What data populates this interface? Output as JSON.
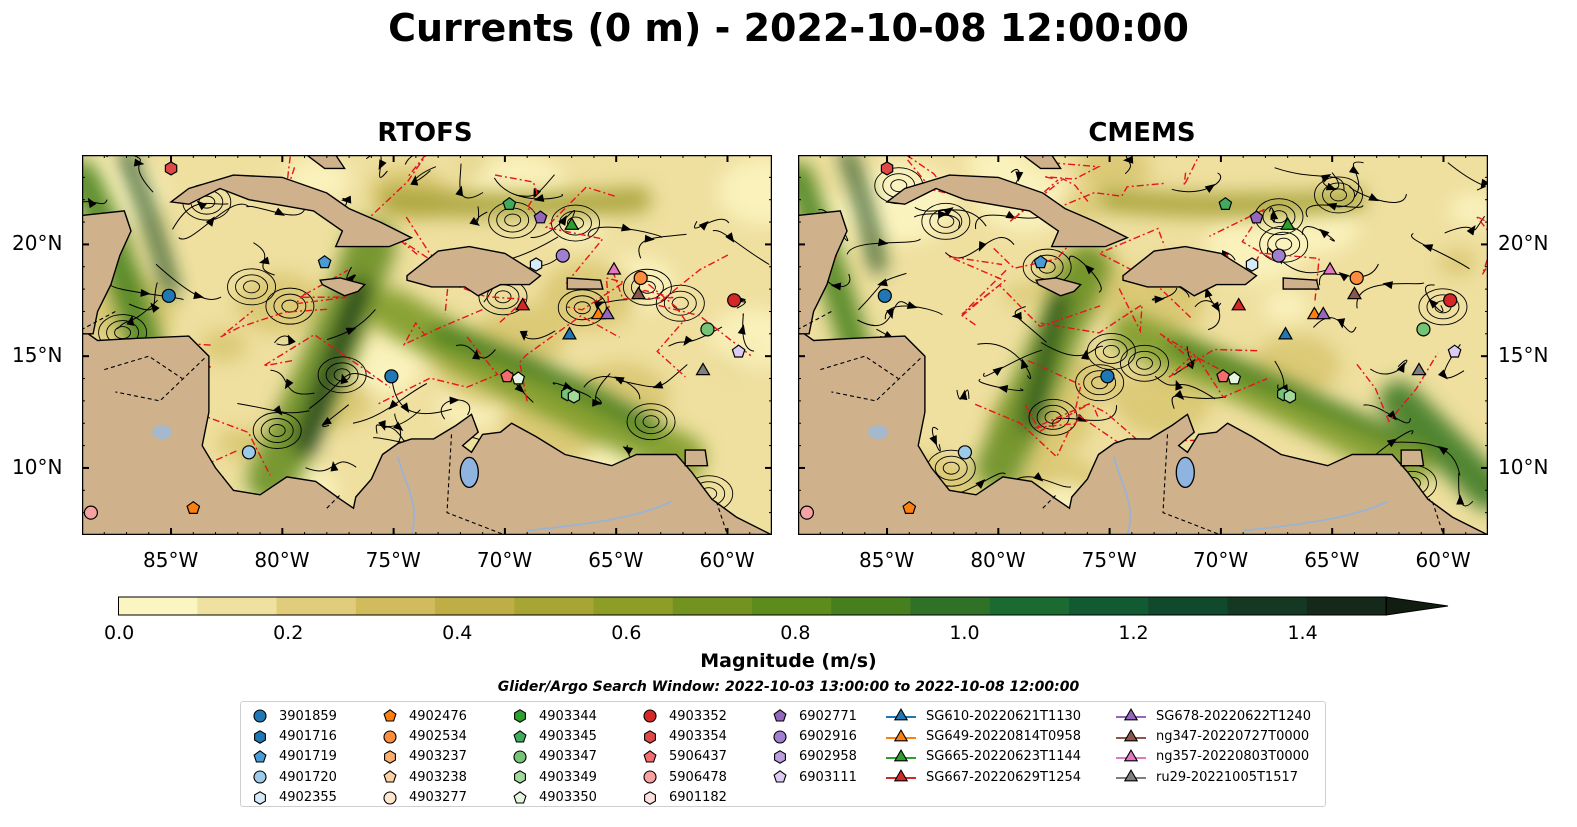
{
  "title": "Currents (0 m) - 2022-10-08 12:00:00",
  "panels": [
    {
      "title": "RTOFS"
    },
    {
      "title": "CMEMS"
    }
  ],
  "map_extent": {
    "lon_min": -89,
    "lon_max": -58,
    "lat_min": 7,
    "lat_max": 24
  },
  "lat_ticks": [
    {
      "value": 20,
      "label": "20°N"
    },
    {
      "value": 15,
      "label": "15°N"
    },
    {
      "value": 10,
      "label": "10°N"
    }
  ],
  "lon_ticks": [
    {
      "value": -85,
      "label": "85°W"
    },
    {
      "value": -80,
      "label": "80°W"
    },
    {
      "value": -75,
      "label": "75°W"
    },
    {
      "value": -70,
      "label": "70°W"
    },
    {
      "value": -65,
      "label": "65°W"
    },
    {
      "value": -60,
      "label": "60°W"
    }
  ],
  "colorbar": {
    "label": "Magnitude (m/s)",
    "min": 0.0,
    "max": 1.5,
    "extend": "max",
    "ticks": [
      "0.0",
      "0.2",
      "0.4",
      "0.6",
      "0.8",
      "1.0",
      "1.2",
      "1.4"
    ],
    "colors": [
      "#fbf5c2",
      "#efe2a0",
      "#e1cc7c",
      "#d2bb5c",
      "#bfae45",
      "#a7a533",
      "#8e9d26",
      "#739320",
      "#5d8b1c",
      "#477f1f",
      "#2f7127",
      "#1a6a31",
      "#125a32",
      "#11492c",
      "#153822",
      "#15291a",
      "#121d12"
    ]
  },
  "search_window": "Glider/Argo Search Window: 2022-10-03 13:00:00 to 2022-10-08 12:00:00",
  "legend": {
    "columns": [
      [
        {
          "label": "3901859",
          "shape": "circle",
          "color": "#1f77b4"
        },
        {
          "label": "4901716",
          "shape": "hexagon",
          "color": "#1f77b4"
        },
        {
          "label": "4901719",
          "shape": "pentagon",
          "color": "#4a9ad6"
        },
        {
          "label": "4901720",
          "shape": "circle",
          "color": "#9ecae9"
        },
        {
          "label": "4902355",
          "shape": "hexagon",
          "color": "#d5ebf8"
        }
      ],
      [
        {
          "label": "4902476",
          "shape": "pentagon",
          "color": "#ff7f0e"
        },
        {
          "label": "4902534",
          "shape": "circle",
          "color": "#fd8d3c"
        },
        {
          "label": "4903237",
          "shape": "hexagon",
          "color": "#fdae6b"
        },
        {
          "label": "4903238",
          "shape": "pentagon",
          "color": "#fdd0a2"
        },
        {
          "label": "4903277",
          "shape": "circle",
          "color": "#fee6ce"
        }
      ],
      [
        {
          "label": "4903344",
          "shape": "hexagon",
          "color": "#2ca02c"
        },
        {
          "label": "4903345",
          "shape": "pentagon",
          "color": "#41ab5d"
        },
        {
          "label": "4903347",
          "shape": "circle",
          "color": "#74c476"
        },
        {
          "label": "4903349",
          "shape": "hexagon",
          "color": "#a1d99b"
        },
        {
          "label": "4903350",
          "shape": "pentagon",
          "color": "#e5f5e0"
        }
      ],
      [
        {
          "label": "4903352",
          "shape": "circle",
          "color": "#d62728"
        },
        {
          "label": "4903354",
          "shape": "hexagon",
          "color": "#e04848"
        },
        {
          "label": "5906437",
          "shape": "pentagon",
          "color": "#f46d6d"
        },
        {
          "label": "5906478",
          "shape": "circle",
          "color": "#f7a2a2"
        },
        {
          "label": "6901182",
          "shape": "hexagon",
          "color": "#fde0dd"
        }
      ],
      [
        {
          "label": "6902771",
          "shape": "pentagon",
          "color": "#9467bd"
        },
        {
          "label": "6902916",
          "shape": "circle",
          "color": "#a17fd0"
        },
        {
          "label": "6902958",
          "shape": "hexagon",
          "color": "#bc9de0"
        },
        {
          "label": "6903111",
          "shape": "pentagon",
          "color": "#dcccf4"
        }
      ],
      [
        {
          "label": "SG610-20220621T1130",
          "shape": "triangle",
          "color": "#1f77b4"
        },
        {
          "label": "SG649-20220814T0958",
          "shape": "triangle",
          "color": "#ff7f0e"
        },
        {
          "label": "SG665-20220623T1144",
          "shape": "triangle",
          "color": "#2ca02c"
        },
        {
          "label": "SG667-20220629T1254",
          "shape": "triangle",
          "color": "#d62728"
        }
      ],
      [
        {
          "label": "SG678-20220622T1240",
          "shape": "triangle",
          "color": "#9467bd"
        },
        {
          "label": "ng347-20220727T0000",
          "shape": "triangle",
          "color": "#8c564b"
        },
        {
          "label": "ng357-20220803T0000",
          "shape": "triangle",
          "color": "#e377c2"
        },
        {
          "label": "ru29-20221005T1517",
          "shape": "triangle",
          "color": "#7f7f7f"
        }
      ]
    ]
  },
  "markers": [
    {
      "lon": -75.1,
      "lat": 14.1,
      "shape": "circle",
      "color": "#1f77b4"
    },
    {
      "lon": -85.1,
      "lat": 17.7,
      "shape": "circle",
      "color": "#1f77b4"
    },
    {
      "lon": -78.1,
      "lat": 19.2,
      "shape": "pentagon",
      "color": "#4a9ad6"
    },
    {
      "lon": -81.5,
      "lat": 10.7,
      "shape": "circle",
      "color": "#9ecae9"
    },
    {
      "lon": -68.6,
      "lat": 19.1,
      "shape": "hexagon",
      "color": "#d5ebf8"
    },
    {
      "lon": -84.0,
      "lat": 8.2,
      "shape": "pentagon",
      "color": "#ff7f0e"
    },
    {
      "lon": -63.9,
      "lat": 18.5,
      "shape": "circle",
      "color": "#fd8d3c"
    },
    {
      "lon": -69.8,
      "lat": 21.8,
      "shape": "pentagon",
      "color": "#41ab5d"
    },
    {
      "lon": -60.9,
      "lat": 16.2,
      "shape": "circle",
      "color": "#74c476"
    },
    {
      "lon": -67.2,
      "lat": 13.3,
      "shape": "hexagon",
      "color": "#74c476"
    },
    {
      "lon": -66.9,
      "lat": 13.2,
      "shape": "hexagon",
      "color": "#a1d99b"
    },
    {
      "lon": -69.4,
      "lat": 14.0,
      "shape": "pentagon",
      "color": "#e5f5e0"
    },
    {
      "lon": -69.9,
      "lat": 14.1,
      "shape": "pentagon",
      "color": "#f46d6d"
    },
    {
      "lon": -59.7,
      "lat": 17.5,
      "shape": "circle",
      "color": "#d62728"
    },
    {
      "lon": -85.0,
      "lat": 23.4,
      "shape": "hexagon",
      "color": "#e04848"
    },
    {
      "lon": -88.6,
      "lat": 8.0,
      "shape": "circle",
      "color": "#f7a2a2"
    },
    {
      "lon": -68.4,
      "lat": 21.2,
      "shape": "pentagon",
      "color": "#9467bd"
    },
    {
      "lon": -67.4,
      "lat": 19.5,
      "shape": "circle",
      "color": "#a17fd0"
    },
    {
      "lon": -59.5,
      "lat": 15.2,
      "shape": "pentagon",
      "color": "#dcccf4"
    },
    {
      "lon": -67.1,
      "lat": 16.0,
      "shape": "triangle",
      "color": "#1f77b4"
    },
    {
      "lon": -65.8,
      "lat": 16.9,
      "shape": "triangle",
      "color": "#ff7f0e"
    },
    {
      "lon": -67.0,
      "lat": 20.9,
      "shape": "triangle",
      "color": "#2ca02c"
    },
    {
      "lon": -69.2,
      "lat": 17.3,
      "shape": "triangle",
      "color": "#d62728"
    },
    {
      "lon": -65.4,
      "lat": 16.9,
      "shape": "triangle",
      "color": "#9467bd"
    },
    {
      "lon": -64.0,
      "lat": 17.8,
      "shape": "triangle",
      "color": "#8c564b"
    },
    {
      "lon": -65.1,
      "lat": 18.9,
      "shape": "triangle",
      "color": "#e377c2"
    },
    {
      "lon": -61.1,
      "lat": 14.4,
      "shape": "triangle",
      "color": "#7f7f7f"
    }
  ]
}
